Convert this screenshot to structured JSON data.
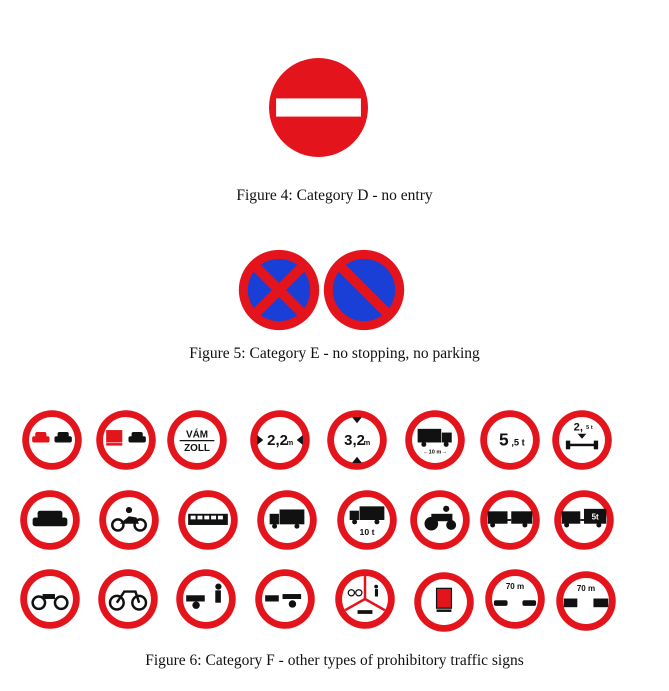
{
  "figures": [
    {
      "caption": "Figure 4: Category D - no entry"
    },
    {
      "caption": "Figure 5: Category E - no stopping, no parking"
    },
    {
      "caption": "Figure 6: Category F - other types of prohibitory traffic signs"
    }
  ],
  "sign_text": {
    "vam": "VÁM",
    "zoll": "ZOLL",
    "width_big": "2,2",
    "width_unit": "m",
    "height_big": "3,2",
    "height_unit": "m",
    "truck_length": "←10 m→",
    "weight_big": "5",
    "weight_small": ",5 t",
    "axle_big": "2,",
    "axle_small": "5 t",
    "truck_10t": "10 t",
    "trailer_5t": "5t",
    "dist_cars": "70 m",
    "dist_trucks": "70 m"
  },
  "colors": {
    "red": "#e3141b",
    "blue": "#1a3fd6",
    "ink": "#111111"
  }
}
